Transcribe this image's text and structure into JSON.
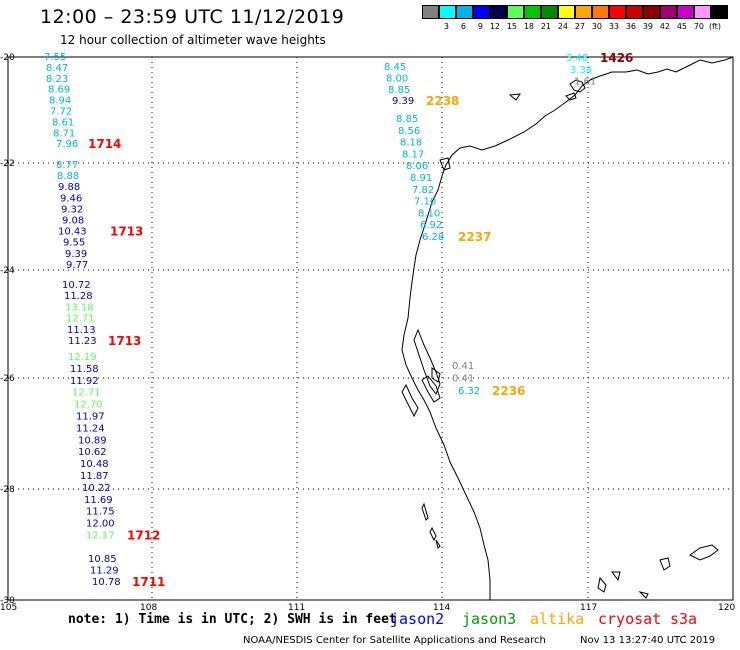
{
  "header": {
    "title": "12:00 – 23:59 UTC 11/12/2019",
    "subtitle": "12 hour collection of altimeter wave heights"
  },
  "legend": {
    "colors": [
      "#808080",
      "#00ffff",
      "#00b4e6",
      "#0000ff",
      "#00004b",
      "#5aff5a",
      "#00c800",
      "#008c00",
      "#ffff00",
      "#ffa500",
      "#ff7800",
      "#ff0000",
      "#c80000",
      "#8b0000",
      "#a0006e",
      "#c800c8",
      "#ff96ff",
      "#000000"
    ],
    "labels": [
      "3",
      "6",
      "9",
      "12",
      "15",
      "18",
      "21",
      "24",
      "27",
      "30",
      "33",
      "36",
      "39",
      "42",
      "45",
      "70",
      "(ft)"
    ]
  },
  "axes": {
    "lat_labels": [
      "-20",
      "-22",
      "-24",
      "-26",
      "-28",
      "-30"
    ],
    "lon_labels": [
      "105",
      "108",
      "111",
      "114",
      "117",
      "120"
    ]
  },
  "tracks": [
    {
      "sat": "cryosat",
      "time": "1714",
      "time_color": "#ff0000",
      "points": [
        {
          "v": "7.55",
          "c": "#00b4e6"
        },
        {
          "v": "8.47",
          "c": "#00b4e6"
        },
        {
          "v": "8.23",
          "c": "#00b4e6"
        },
        {
          "v": "8.69",
          "c": "#00b4e6"
        },
        {
          "v": "8.94",
          "c": "#00b4e6"
        },
        {
          "v": "7.72",
          "c": "#00b4e6"
        },
        {
          "v": "8.61",
          "c": "#00b4e6"
        },
        {
          "v": "8.71",
          "c": "#00b4e6"
        },
        {
          "v": "7.96",
          "c": "#00b4e6"
        }
      ]
    },
    {
      "sat": "cryosat",
      "time": "1713",
      "time_color": "#ff0000",
      "points": [
        {
          "v": "8.77",
          "c": "#00b4e6"
        },
        {
          "v": "8.88",
          "c": "#00b4e6"
        },
        {
          "v": "9.88",
          "c": "#0000c8"
        },
        {
          "v": "9.46",
          "c": "#0000c8"
        },
        {
          "v": "9.32",
          "c": "#0000c8"
        },
        {
          "v": "9.08",
          "c": "#0000c8"
        },
        {
          "v": "10.43",
          "c": "#0000c8"
        },
        {
          "v": "9.55",
          "c": "#0000c8"
        },
        {
          "v": "9.39",
          "c": "#0000c8"
        },
        {
          "v": "9.77",
          "c": "#0000c8"
        }
      ]
    },
    {
      "sat": "cryosat",
      "time": "1713",
      "time_color": "#ff0000",
      "points": [
        {
          "v": "10.72",
          "c": "#0000c8"
        },
        {
          "v": "11.28",
          "c": "#0000c8"
        },
        {
          "v": "13.18",
          "c": "#5aff5a"
        },
        {
          "v": "12.71",
          "c": "#5aff5a"
        },
        {
          "v": "11.13",
          "c": "#0000c8"
        },
        {
          "v": "11.23",
          "c": "#0000c8"
        }
      ]
    },
    {
      "sat": "cryosat",
      "time": "1712",
      "time_color": "#ff0000",
      "points": [
        {
          "v": "12.19",
          "c": "#5aff5a"
        },
        {
          "v": "11.58",
          "c": "#0000c8"
        },
        {
          "v": "11.92",
          "c": "#0000c8"
        },
        {
          "v": "12.71",
          "c": "#5aff5a"
        },
        {
          "v": "12.70",
          "c": "#5aff5a"
        },
        {
          "v": "11.97",
          "c": "#0000c8"
        },
        {
          "v": "11.24",
          "c": "#0000c8"
        },
        {
          "v": "10.89",
          "c": "#0000c8"
        },
        {
          "v": "10.62",
          "c": "#0000c8"
        },
        {
          "v": "10.48",
          "c": "#0000c8"
        },
        {
          "v": "11.87",
          "c": "#0000c8"
        },
        {
          "v": "10.22",
          "c": "#0000c8"
        },
        {
          "v": "11.69",
          "c": "#0000c8"
        },
        {
          "v": "11.75",
          "c": "#0000c8"
        },
        {
          "v": "12.00",
          "c": "#0000c8"
        },
        {
          "v": "12.17",
          "c": "#5aff5a"
        }
      ]
    },
    {
      "sat": "cryosat",
      "time": "1711",
      "time_color": "#ff0000",
      "points": [
        {
          "v": "10.85",
          "c": "#0000c8"
        },
        {
          "v": "11.29",
          "c": "#0000c8"
        },
        {
          "v": "10.78",
          "c": "#0000c8"
        }
      ]
    },
    {
      "sat": "altika",
      "time": "2238",
      "time_color": "#ffa500",
      "points": [
        {
          "v": "8.45",
          "c": "#00b4e6"
        },
        {
          "v": "8.00",
          "c": "#00b4e6"
        },
        {
          "v": "8.85",
          "c": "#00b4e6"
        },
        {
          "v": "9.39",
          "c": "#0000c8"
        }
      ]
    },
    {
      "sat": "altika",
      "time": "2237",
      "time_color": "#ffa500",
      "points": [
        {
          "v": "8.85",
          "c": "#00b4e6"
        },
        {
          "v": "8.56",
          "c": "#00b4e6"
        },
        {
          "v": "8.18",
          "c": "#00b4e6"
        },
        {
          "v": "8.17",
          "c": "#00b4e6"
        },
        {
          "v": "8.06",
          "c": "#00b4e6"
        },
        {
          "v": "8.91",
          "c": "#00b4e6"
        },
        {
          "v": "7.82",
          "c": "#00b4e6"
        },
        {
          "v": "7.10",
          "c": "#00b4e6"
        },
        {
          "v": "8.10",
          "c": "#00b4e6"
        },
        {
          "v": "6.92",
          "c": "#00b4e6"
        },
        {
          "v": "6.28",
          "c": "#00b4e6"
        }
      ]
    },
    {
      "sat": "altika",
      "time": "2236",
      "time_color": "#ffa500",
      "points": [
        {
          "v": "0.41",
          "c": "#808080"
        },
        {
          "v": "0.41",
          "c": "#808080"
        },
        {
          "v": "6.32",
          "c": "#00b4e6"
        }
      ]
    },
    {
      "sat": "cryosat-dark",
      "time": "1426",
      "time_color": "#8b0000",
      "points": [
        {
          "v": "3.48",
          "c": "#00ffff"
        },
        {
          "v": "3.34",
          "c": "#00ffff"
        },
        {
          "v": "1.61",
          "c": "#808080"
        }
      ]
    }
  ],
  "footer": {
    "note": "note: 1) Time is in UTC; 2) SWH is in feet",
    "sats": [
      {
        "label": "jason2",
        "color": "#0000ff"
      },
      {
        "label": "jason3",
        "color": "#00a000"
      },
      {
        "label": "altika",
        "color": "#ffa500"
      },
      {
        "label": "cryosat",
        "color": "#ff0000"
      },
      {
        "label": "s3a",
        "color": "#ff0000"
      }
    ],
    "credit": "NOAA/NESDIS Center for Satellite Applications and Research",
    "generated": "Nov 13 13:27:40 UTC 2019"
  }
}
